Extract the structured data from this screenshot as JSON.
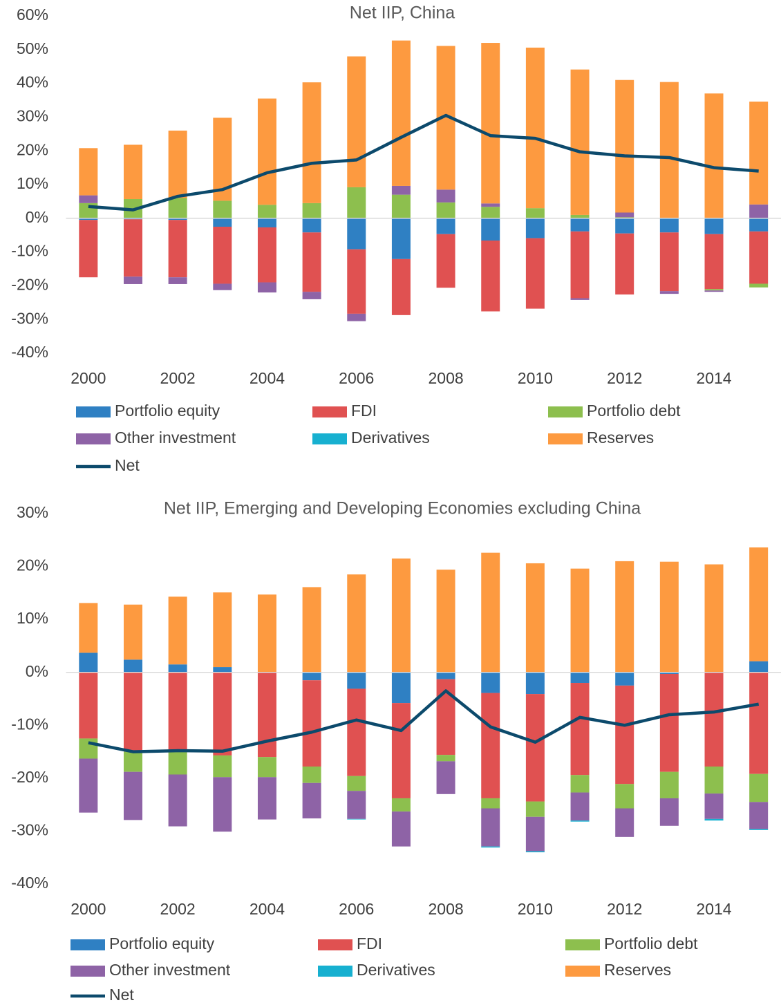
{
  "chart_data": [
    {
      "type": "bar",
      "title": "Net IIP, China",
      "categories": [
        "2000",
        null,
        "2002",
        null,
        "2004",
        null,
        "2006",
        null,
        "2008",
        null,
        "2010",
        null,
        "2012",
        null,
        "2014",
        null
      ],
      "series": [
        {
          "name": "Portfolio equity",
          "color": "#2f80c3",
          "values": [
            -0.5,
            -0.3,
            -0.5,
            -2.5,
            -2.7,
            -4.2,
            -9.2,
            -12.1,
            -4.7,
            -6.6,
            -5.9,
            -3.9,
            -4.5,
            -4.2,
            -4.7,
            -3.9
          ]
        },
        {
          "name": "FDI",
          "color": "#e05151",
          "values": [
            -17,
            -17,
            -17,
            -16.9,
            -16.3,
            -17.6,
            -19.1,
            -16.6,
            -15.9,
            -21,
            -20.9,
            -19.8,
            -18.1,
            -17.4,
            -16.3,
            -15.5
          ]
        },
        {
          "name": "Portfolio debt",
          "color": "#8dbf4e",
          "values": [
            4.5,
            5.7,
            6,
            5.2,
            4,
            4.5,
            9.2,
            7,
            4.7,
            3.4,
            3,
            1,
            0.3,
            0,
            -0.4,
            -1.1
          ]
        },
        {
          "name": "Other investment",
          "color": "#8e63a6",
          "values": [
            2.3,
            -2.2,
            -2,
            -1.9,
            -3,
            -2.2,
            -2.2,
            2.6,
            3.8,
            1,
            0,
            -0.5,
            1.4,
            -0.8,
            -0.4,
            4.1
          ]
        },
        {
          "name": "Derivatives",
          "color": "#17b0d0",
          "values": [
            0,
            0,
            0,
            0,
            0,
            0,
            0,
            0,
            0,
            0,
            0,
            0,
            0,
            0,
            0,
            0
          ]
        },
        {
          "name": "Reserves",
          "color": "#fd9a40",
          "values": [
            14,
            16.1,
            20,
            24.6,
            31.5,
            35.8,
            38.8,
            43.1,
            42.6,
            47.6,
            47.6,
            43.1,
            39.3,
            40.4,
            37,
            30.5
          ]
        },
        {
          "name": "Net",
          "type": "line",
          "color": "#0c4a6c",
          "values": [
            3.5,
            2.5,
            6.5,
            8.5,
            13.5,
            16.3,
            17.3,
            24,
            30.5,
            24.5,
            23.7,
            19.7,
            18.5,
            18,
            15,
            14
          ]
        }
      ],
      "ylim": [
        -40,
        60
      ],
      "yticks": [
        {
          "value": -40,
          "label": "-40%"
        },
        {
          "value": -30,
          "label": "-30%"
        },
        {
          "value": -20,
          "label": "-20%"
        },
        {
          "value": -10,
          "label": "-10%"
        },
        {
          "value": 0,
          "label": "0%"
        },
        {
          "value": 10,
          "label": "10%"
        },
        {
          "value": 20,
          "label": "20%"
        },
        {
          "value": 30,
          "label": "30%"
        },
        {
          "value": 40,
          "label": "40%"
        },
        {
          "value": 50,
          "label": "50%"
        },
        {
          "value": 60,
          "label": "60%"
        }
      ],
      "legend": "bottom"
    },
    {
      "type": "bar",
      "title": "Net IIP, Emerging and Developing Economies excluding China",
      "categories": [
        "2000",
        null,
        "2002",
        null,
        "2004",
        null,
        "2006",
        null,
        "2008",
        null,
        "2010",
        null,
        "2012",
        null,
        "2014",
        null
      ],
      "series": [
        {
          "name": "Portfolio equity",
          "color": "#2f80c3",
          "values": [
            3.7,
            2.4,
            1.5,
            1,
            0,
            -1.5,
            -3.1,
            -5.8,
            -1.3,
            -3.9,
            -4.1,
            -2,
            -2.5,
            -0.3,
            0,
            2.1
          ]
        },
        {
          "name": "FDI",
          "color": "#e05151",
          "values": [
            -12.5,
            -15,
            -15,
            -15.7,
            -16,
            -16.3,
            -16.5,
            -18,
            -14.3,
            -19.9,
            -20.3,
            -17.4,
            -18.6,
            -18.5,
            -17.8,
            -19.2
          ]
        },
        {
          "name": "Portfolio debt",
          "color": "#8dbf4e",
          "values": [
            -3.8,
            -3.8,
            -4.3,
            -4.1,
            -3.8,
            -3.1,
            -2.8,
            -2.5,
            -1.2,
            -1.9,
            -2.9,
            -3.3,
            -4.6,
            -5,
            -5.1,
            -5.3
          ]
        },
        {
          "name": "Other investment",
          "color": "#8e63a6",
          "values": [
            -10.2,
            -9.1,
            -9.8,
            -10.3,
            -8,
            -6.7,
            -5.3,
            -6.6,
            -6.2,
            -7.2,
            -6.5,
            -5.3,
            -5.4,
            -5.2,
            -4.8,
            -5.1
          ]
        },
        {
          "name": "Derivatives",
          "color": "#17b0d0",
          "values": [
            0,
            0,
            0,
            0,
            0,
            0,
            -0.1,
            0,
            0,
            -0.2,
            -0.2,
            -0.2,
            0,
            0,
            -0.3,
            -0.2
          ]
        },
        {
          "name": "Reserves",
          "color": "#fd9a40",
          "values": [
            9.4,
            10.4,
            12.8,
            14.1,
            14.7,
            16.1,
            18.5,
            21.5,
            19.4,
            22.6,
            20.6,
            19.6,
            21,
            20.9,
            20.4,
            21.5
          ]
        },
        {
          "name": "Net",
          "type": "line",
          "color": "#0c4a6c",
          "values": [
            -13.3,
            -15,
            -14.8,
            -14.9,
            -13,
            -11.3,
            -9,
            -11,
            -3.5,
            -10.3,
            -13.2,
            -8.5,
            -10,
            -8,
            -7.5,
            -6
          ]
        }
      ],
      "ylim": [
        -40,
        30
      ],
      "yticks": [
        {
          "value": -40,
          "label": "-40%"
        },
        {
          "value": -30,
          "label": "-30%"
        },
        {
          "value": -20,
          "label": "-20%"
        },
        {
          "value": -10,
          "label": "-10%"
        },
        {
          "value": 0,
          "label": "0%"
        },
        {
          "value": 10,
          "label": "10%"
        },
        {
          "value": 20,
          "label": "20%"
        },
        {
          "value": 30,
          "label": "30%"
        }
      ],
      "legend": "bottom"
    }
  ]
}
